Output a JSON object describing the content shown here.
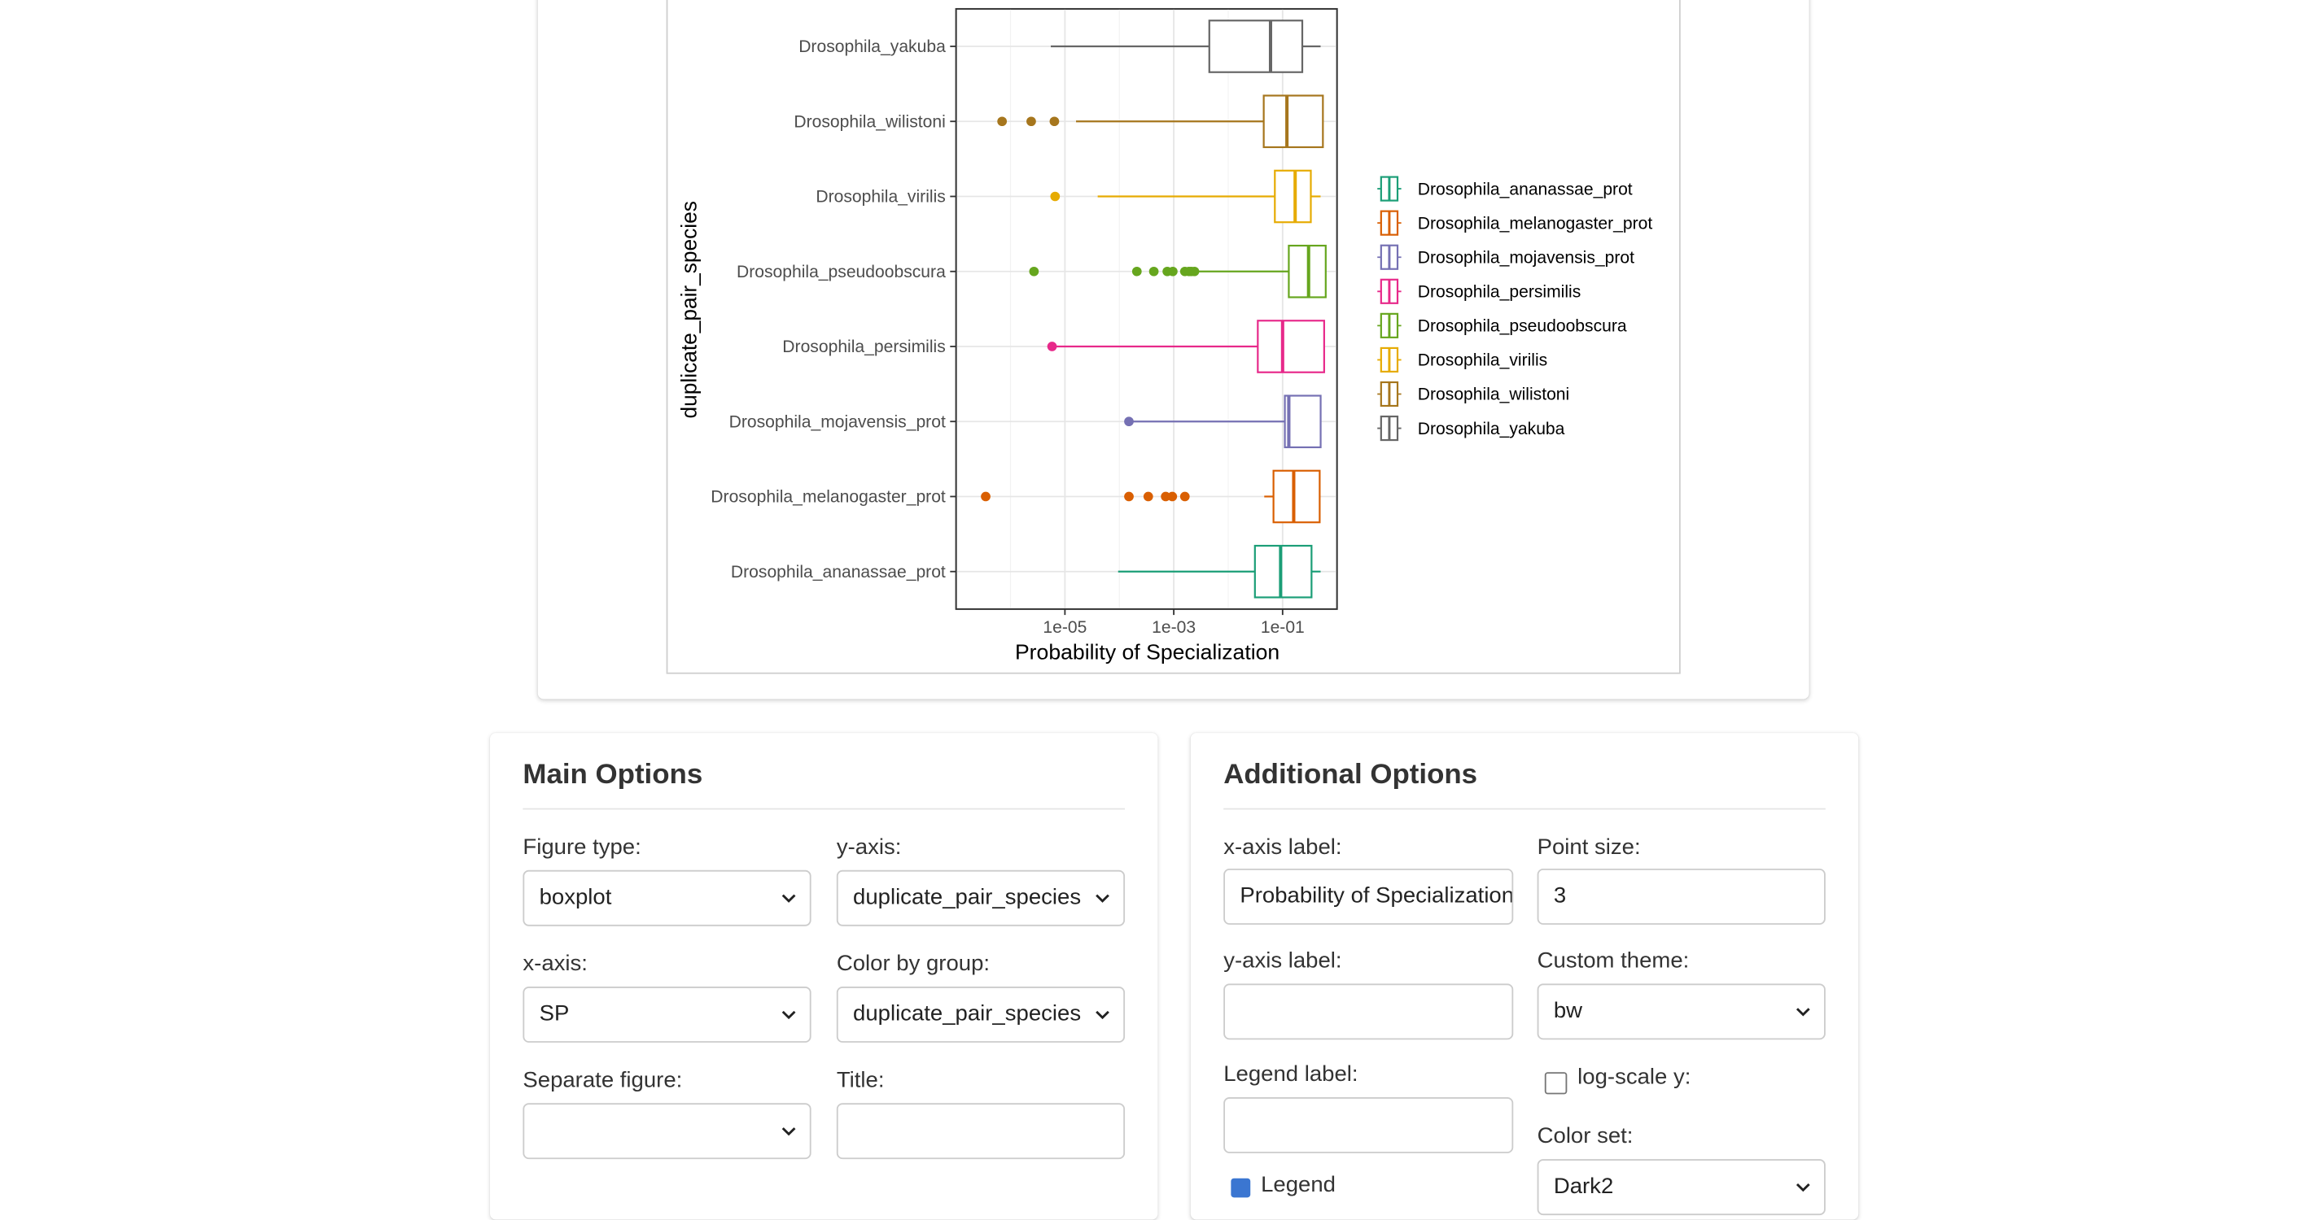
{
  "chart_data": {
    "type": "boxplot",
    "orientation": "horizontal",
    "xlabel": "Probability of Specialization",
    "ylabel": "duplicate_pair_species",
    "x_scale": "log10",
    "xlim": [
      1e-07,
      1
    ],
    "x_ticks": [
      {
        "value": 1e-05,
        "label": "1e-05"
      },
      {
        "value": 0.001,
        "label": "1e-03"
      },
      {
        "value": 0.1,
        "label": "1e-01"
      }
    ],
    "grid": true,
    "legend_position": "right",
    "theme": "bw",
    "series": [
      {
        "name": "Drosophila_yakuba",
        "color": "#666666",
        "whisker_low": 5.5e-06,
        "q1": 0.0045,
        "median": 0.06,
        "q3": 0.23,
        "whisker_high": 1.0,
        "outliers": []
      },
      {
        "name": "Drosophila_wilistoni",
        "color": "#A6761D",
        "whisker_low": 1.6e-05,
        "q1": 0.045,
        "median": 0.12,
        "q3": 0.55,
        "whisker_high": 1.0,
        "outliers": [
          7e-07,
          2.4e-06,
          6.4e-06
        ]
      },
      {
        "name": "Drosophila_virilis",
        "color": "#E6AB02",
        "whisker_low": 4e-05,
        "q1": 0.072,
        "median": 0.17,
        "q3": 0.33,
        "whisker_high": 1.0,
        "outliers": [
          6.6e-06
        ]
      },
      {
        "name": "Drosophila_pseudoobscura",
        "color": "#66A61E",
        "whisker_low": 0.0026,
        "q1": 0.13,
        "median": 0.3,
        "q3": 0.62,
        "whisker_high": 1.0,
        "outliers": [
          2.7e-06,
          0.00021,
          0.00043,
          0.00076,
          0.00096,
          0.0016,
          0.0019,
          0.0021,
          0.0024
        ]
      },
      {
        "name": "Drosophila_persimilis",
        "color": "#E7298A",
        "whisker_low": 6.2e-06,
        "q1": 0.035,
        "median": 0.1,
        "q3": 0.58,
        "whisker_high": 1.0,
        "outliers": [
          5.8e-06
        ]
      },
      {
        "name": "Drosophila_mojavensis_prot",
        "color": "#7570B3",
        "whisker_low": 0.00016,
        "q1": 0.11,
        "median": 0.13,
        "q3": 0.5,
        "whisker_high": 1.0,
        "outliers": [
          0.00015
        ]
      },
      {
        "name": "Drosophila_melanogaster_prot",
        "color": "#D95F02",
        "whisker_low": 0.046,
        "q1": 0.068,
        "median": 0.16,
        "q3": 0.48,
        "whisker_high": 1.0,
        "outliers": [
          3.5e-07,
          0.00015,
          0.00034,
          0.00071,
          0.00094,
          0.0016
        ]
      },
      {
        "name": "Drosophila_ananassae_prot",
        "color": "#1B9E77",
        "whisker_low": 9.5e-05,
        "q1": 0.031,
        "median": 0.092,
        "q3": 0.34,
        "whisker_high": 1.0,
        "outliers": []
      }
    ],
    "legend_order": [
      "Drosophila_ananassae_prot",
      "Drosophila_melanogaster_prot",
      "Drosophila_mojavensis_prot",
      "Drosophila_persimilis",
      "Drosophila_pseudoobscura",
      "Drosophila_virilis",
      "Drosophila_wilistoni",
      "Drosophila_yakuba"
    ]
  },
  "main_options": {
    "title": "Main Options",
    "figure_type": {
      "label": "Figure type:",
      "value": "boxplot"
    },
    "y_axis": {
      "label": "y-axis:",
      "value": "duplicate_pair_species"
    },
    "x_axis": {
      "label": "x-axis:",
      "value": "SP"
    },
    "color_by_group": {
      "label": "Color by group:",
      "value": "duplicate_pair_species"
    },
    "separate_figure": {
      "label": "Separate figure:",
      "value": ""
    },
    "title_field": {
      "label": "Title:",
      "value": ""
    }
  },
  "additional_options": {
    "title": "Additional Options",
    "x_axis_label": {
      "label": "x-axis label:",
      "value": "Probability of Specialization"
    },
    "point_size": {
      "label": "Point size:",
      "value": "3"
    },
    "y_axis_label": {
      "label": "y-axis label:",
      "value": ""
    },
    "custom_theme": {
      "label": "Custom theme:",
      "value": "bw"
    },
    "legend_label": {
      "label": "Legend label:",
      "value": ""
    },
    "log_scale_y": {
      "label": "log-scale y:",
      "checked": false
    },
    "color_set": {
      "label": "Color set:",
      "value": "Dark2"
    },
    "legend_toggle": {
      "label": "Legend",
      "checked": true
    }
  },
  "colors": {
    "accent_checkbox": "#3b76d1",
    "panel_rule": "#e5e5e5"
  }
}
